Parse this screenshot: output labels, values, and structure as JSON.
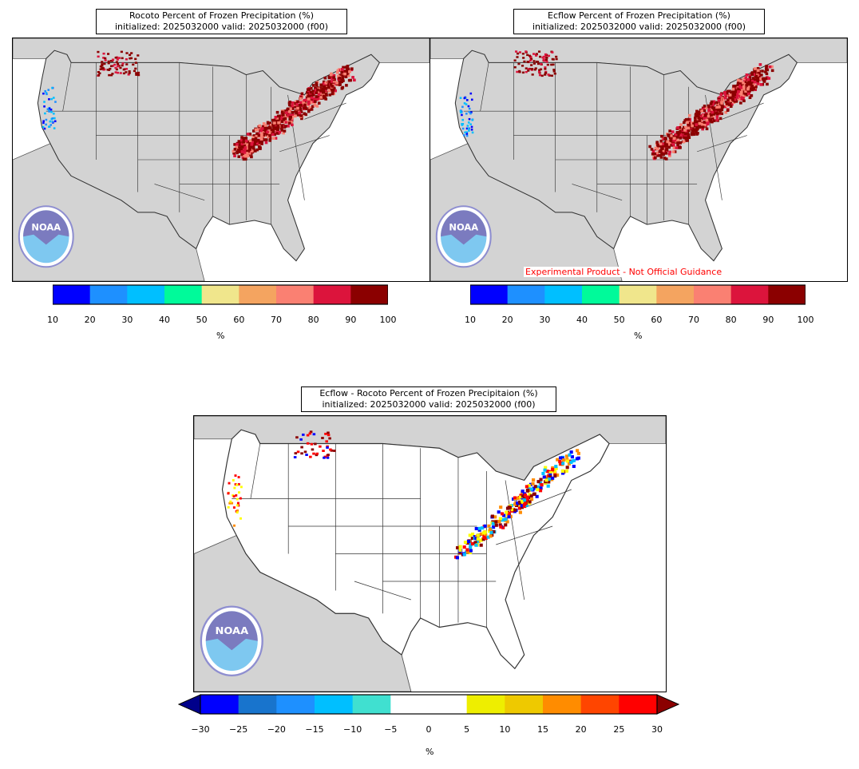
{
  "panels": [
    {
      "title": "Rocoto Percent of Frozen Precipitation (%)",
      "subtitle": "initialized: 2025032000 valid: 2025032000 (f00)"
    },
    {
      "title": "Ecflow Percent of Frozen Precipitation (%)",
      "subtitle": "initialized: 2025032000 valid: 2025032000 (f00)"
    },
    {
      "title": "Ecflow - Rocoto Percent of Frozen Precipitaion (%)",
      "subtitle": "initialized: 2025032000 valid: 2025032000 (f00)"
    }
  ],
  "disclaimer": "Experimental Product - Not Official Guidance",
  "logo_text": "NOAA",
  "chart_data": [
    {
      "type": "heatmap",
      "title": "Rocoto Percent of Frozen Precipitation (%)",
      "colorbar": {
        "label": "%",
        "ticks": [
          10,
          20,
          30,
          40,
          50,
          60,
          70,
          80,
          90,
          100
        ],
        "colors": [
          "#0000ff",
          "#1e90ff",
          "#00bfff",
          "#00fa9a",
          "#f0e68c",
          "#f4a460",
          "#fa8072",
          "#dc143c",
          "#8b0000"
        ]
      }
    },
    {
      "type": "heatmap",
      "title": "Ecflow Percent of Frozen Precipitation (%)",
      "colorbar": {
        "label": "%",
        "ticks": [
          10,
          20,
          30,
          40,
          50,
          60,
          70,
          80,
          90,
          100
        ],
        "colors": [
          "#0000ff",
          "#1e90ff",
          "#00bfff",
          "#00fa9a",
          "#f0e68c",
          "#f4a460",
          "#fa8072",
          "#dc143c",
          "#8b0000"
        ]
      }
    },
    {
      "type": "heatmap",
      "title": "Ecflow - Rocoto Percent of Frozen Precipitaion (%)",
      "colorbar": {
        "label": "%",
        "ticks": [
          -30,
          -25,
          -20,
          -15,
          -10,
          -5,
          0,
          5,
          10,
          15,
          20,
          25,
          30
        ],
        "tick_labels": [
          "−30",
          "−25",
          "−20",
          "−15",
          "−10",
          "−5",
          "0",
          "5",
          "10",
          "15",
          "20",
          "25",
          "30"
        ],
        "colors": [
          "#0000ff",
          "#1874cd",
          "#1e90ff",
          "#00bfff",
          "#40e0d0",
          "#ffffff",
          "#ffffff",
          "#eeee00",
          "#eec900",
          "#ff8c00",
          "#ff4500",
          "#ff0000"
        ],
        "extend_low_color": "#00008b",
        "extend_high_color": "#8b0000"
      }
    }
  ]
}
